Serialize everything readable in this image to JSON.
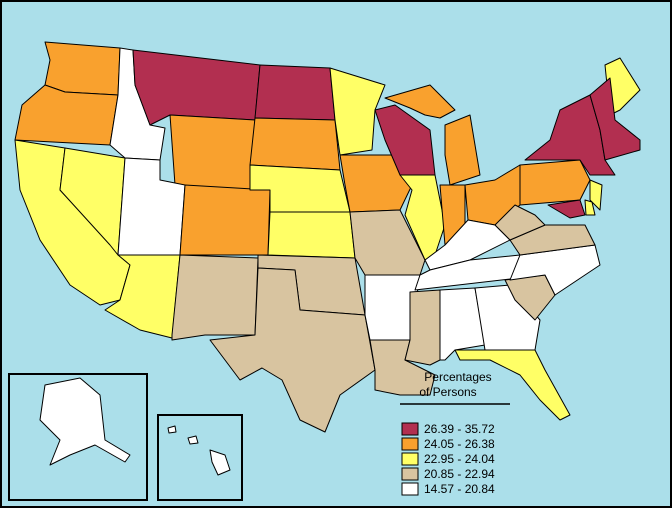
{
  "legend": {
    "title": [
      "Percentages",
      "of Persons"
    ],
    "items": [
      {
        "label": "26.39 - 35.72",
        "color": "#b22f50"
      },
      {
        "label": "24.05 - 26.38",
        "color": "#f9a12e"
      },
      {
        "label": "22.95 - 24.04",
        "color": "#ffff66"
      },
      {
        "label": "20.85 - 22.94",
        "color": "#d8c4a0"
      },
      {
        "label": "14.57 - 20.84",
        "color": "#ffffff"
      }
    ]
  }
}
